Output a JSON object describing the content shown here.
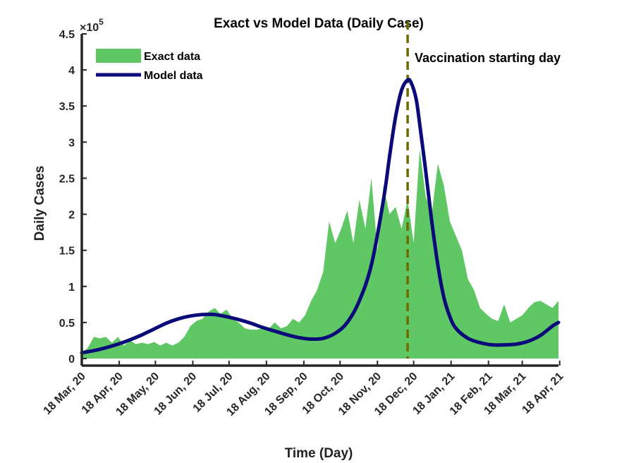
{
  "chart_data": {
    "type": "area",
    "title": "Exact vs Model Data (Daily Case)",
    "xlabel": "Time (Day)",
    "ylabel": "Daily Cases",
    "y_multiplier_label": "×10",
    "y_multiplier_exponent": "5",
    "ylim": [
      0,
      4.5
    ],
    "xlim": [
      0,
      395
    ],
    "y_ticks": [
      0,
      0.5,
      1,
      1.5,
      2,
      2.5,
      3,
      3.5,
      4,
      4.5
    ],
    "y_tick_labels": [
      "0",
      "0.5",
      "1",
      "1.5",
      "2",
      "2.5",
      "3",
      "3.5",
      "4",
      "4.5"
    ],
    "x_ticks": [
      0,
      31,
      61,
      92,
      122,
      153,
      184,
      214,
      245,
      275,
      306,
      337,
      365,
      396
    ],
    "x_tick_labels": [
      "18 Mar, 20",
      "18 Apr, 20",
      "18 May, 20",
      "18 Jun, 20",
      "18 Jul, 20",
      "18 Aug, 20",
      "18 Sep, 20",
      "18 Oct, 20",
      "18 Nov, 20",
      "18 Dec, 20",
      "18 Jan, 21",
      "18 Feb, 21",
      "18 Mar, 21",
      "18 Apr, 21"
    ],
    "annotation": {
      "text": "Vaccination starting day",
      "x": 270
    },
    "legend": {
      "position": "top-left",
      "entries": [
        "Exact data",
        "Model data"
      ]
    },
    "colors": {
      "exact": "#5fc764",
      "model": "#0a0a7a",
      "vline": "#6b6b00"
    },
    "series": [
      {
        "name": "Exact data",
        "x": [
          0,
          5,
          10,
          15,
          20,
          25,
          30,
          35,
          40,
          45,
          50,
          55,
          60,
          65,
          70,
          75,
          80,
          85,
          90,
          95,
          100,
          105,
          110,
          115,
          120,
          125,
          130,
          135,
          140,
          145,
          150,
          155,
          160,
          165,
          170,
          175,
          180,
          185,
          190,
          195,
          200,
          205,
          210,
          215,
          220,
          225,
          230,
          235,
          240,
          245,
          250,
          255,
          260,
          265,
          270,
          275,
          280,
          285,
          290,
          295,
          300,
          305,
          310,
          315,
          320,
          325,
          330,
          335,
          340,
          345,
          350,
          355,
          360,
          365,
          370,
          375,
          380,
          385,
          390,
          395
        ],
        "values": [
          0.08,
          0.15,
          0.3,
          0.28,
          0.3,
          0.22,
          0.3,
          0.18,
          0.25,
          0.2,
          0.22,
          0.2,
          0.23,
          0.18,
          0.22,
          0.18,
          0.22,
          0.3,
          0.45,
          0.52,
          0.55,
          0.65,
          0.7,
          0.62,
          0.68,
          0.55,
          0.5,
          0.42,
          0.4,
          0.4,
          0.42,
          0.42,
          0.5,
          0.42,
          0.45,
          0.55,
          0.5,
          0.6,
          0.8,
          0.95,
          1.2,
          1.9,
          1.6,
          1.8,
          2.05,
          1.6,
          2.2,
          1.8,
          2.5,
          1.5,
          2.4,
          2.0,
          2.1,
          1.8,
          2.2,
          1.6,
          2.9,
          2.25,
          2.0,
          2.7,
          2.4,
          1.9,
          1.7,
          1.5,
          1.1,
          0.95,
          0.7,
          0.62,
          0.55,
          0.52,
          0.75,
          0.5,
          0.55,
          0.6,
          0.7,
          0.78,
          0.8,
          0.75,
          0.7,
          0.8
        ]
      },
      {
        "name": "Model data",
        "x": [
          0,
          10,
          20,
          30,
          40,
          50,
          60,
          70,
          80,
          90,
          100,
          110,
          120,
          130,
          140,
          150,
          160,
          170,
          180,
          190,
          200,
          210,
          220,
          230,
          240,
          250,
          255,
          260,
          265,
          270,
          273,
          277,
          280,
          285,
          290,
          295,
          300,
          305,
          310,
          320,
          330,
          340,
          350,
          360,
          370,
          380,
          390,
          395
        ],
        "values": [
          0.08,
          0.11,
          0.15,
          0.2,
          0.26,
          0.33,
          0.41,
          0.49,
          0.55,
          0.59,
          0.61,
          0.61,
          0.58,
          0.54,
          0.49,
          0.43,
          0.38,
          0.33,
          0.29,
          0.27,
          0.28,
          0.35,
          0.5,
          0.8,
          1.3,
          2.2,
          2.8,
          3.35,
          3.72,
          3.86,
          3.82,
          3.6,
          3.25,
          2.6,
          1.9,
          1.3,
          0.85,
          0.58,
          0.42,
          0.28,
          0.22,
          0.19,
          0.19,
          0.2,
          0.24,
          0.32,
          0.45,
          0.5
        ]
      }
    ]
  }
}
